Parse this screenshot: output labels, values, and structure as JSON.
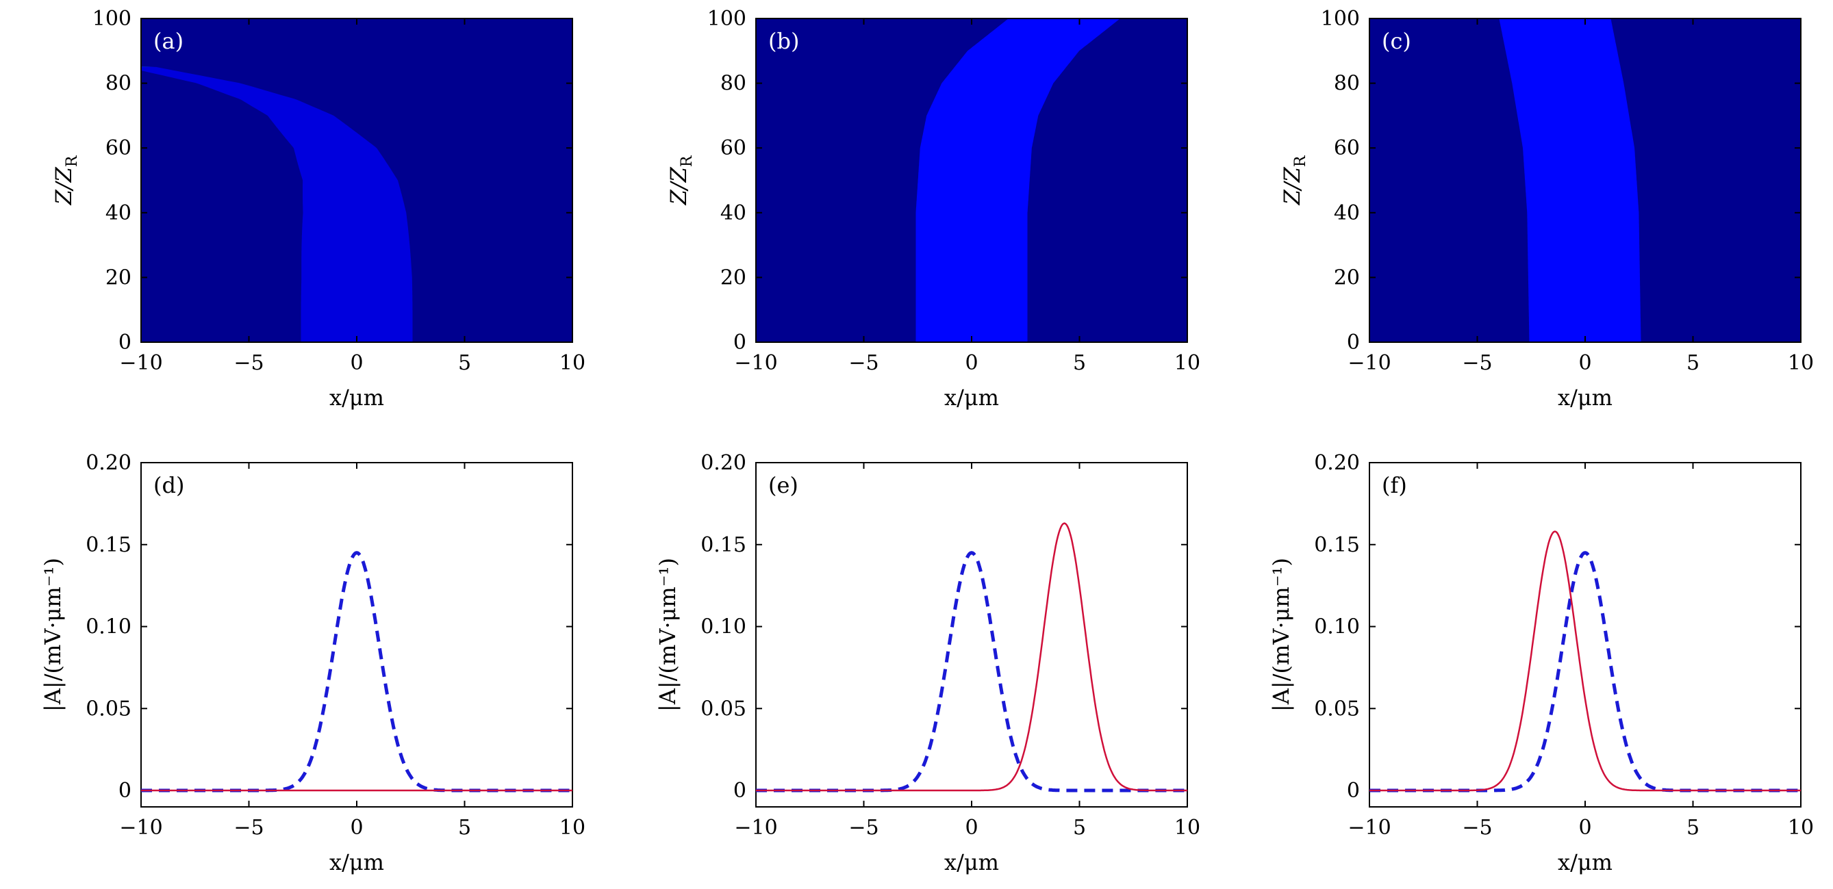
{
  "colors": {
    "dashed_series": "#1a1ad6",
    "solid_series": "#d0103a",
    "heatmap_background": "#00008f"
  },
  "chart_data": [
    {
      "panel": "(a)",
      "type": "heatmap",
      "colormap": "jet",
      "xlabel": "x/μm",
      "ylabel": "Z/Z_R",
      "xlim": [
        -10,
        10
      ],
      "ylim": [
        0,
        100
      ],
      "xticks": [
        "−10",
        "−5",
        "0",
        "5",
        "10"
      ],
      "yticks": [
        "0",
        "20",
        "40",
        "60",
        "80",
        "100"
      ],
      "beam": {
        "center_x_at_z": [
          [
            0,
            0.0
          ],
          [
            20,
            0.0
          ],
          [
            40,
            -0.1
          ],
          [
            50,
            -0.3
          ],
          [
            60,
            -1.0
          ],
          [
            70,
            -2.6
          ],
          [
            75,
            -4.1
          ],
          [
            80,
            -6.4
          ],
          [
            85,
            -10.0
          ]
        ],
        "width_um": [
          1.3,
          0.35
        ],
        "peak_intensity": 0.45,
        "end_z": 85
      }
    },
    {
      "panel": "(b)",
      "type": "heatmap",
      "colormap": "jet",
      "xlabel": "x/μm",
      "ylabel": "Z/Z_R",
      "xlim": [
        -10,
        10
      ],
      "ylim": [
        0,
        100
      ],
      "xticks": [
        "−10",
        "−5",
        "0",
        "5",
        "10"
      ],
      "yticks": [
        "0",
        "20",
        "40",
        "60",
        "80",
        "100"
      ],
      "beam": {
        "center_x_at_z": [
          [
            0,
            0.0
          ],
          [
            40,
            0.0
          ],
          [
            60,
            0.2
          ],
          [
            70,
            0.5
          ],
          [
            80,
            1.2
          ],
          [
            90,
            2.4
          ],
          [
            100,
            4.3
          ]
        ],
        "width_um": [
          1.3,
          1.3
        ],
        "peak_intensity": 1.0,
        "end_z": 100
      }
    },
    {
      "panel": "(c)",
      "type": "heatmap",
      "colormap": "jet",
      "xlabel": "x/μm",
      "ylabel": "Z/Z_R",
      "xlim": [
        -10,
        10
      ],
      "ylim": [
        0,
        100
      ],
      "xticks": [
        "−10",
        "−5",
        "0",
        "5",
        "10"
      ],
      "yticks": [
        "0",
        "20",
        "40",
        "60",
        "80",
        "100"
      ],
      "beam": {
        "center_x_at_z": [
          [
            0,
            0.0
          ],
          [
            40,
            -0.1
          ],
          [
            60,
            -0.3
          ],
          [
            80,
            -0.8
          ],
          [
            100,
            -1.4
          ]
        ],
        "width_um": [
          1.3,
          1.3
        ],
        "peak_intensity": 1.0,
        "end_z": 100
      }
    },
    {
      "panel": "(d)",
      "type": "line",
      "xlabel": "x/μm",
      "ylabel": "|A|/(mV·μm⁻¹)",
      "xlim": [
        -10,
        10
      ],
      "ylim": [
        -0.01,
        0.2
      ],
      "xticks": [
        "−10",
        "−5",
        "0",
        "5",
        "10"
      ],
      "yticks": [
        "0",
        "0.05",
        "0.10",
        "0.15",
        "0.20"
      ],
      "series": [
        {
          "style": "dashed",
          "color": "#1a1ad6",
          "x0": 0.0,
          "peak": 0.145,
          "sigma": 1.05
        },
        {
          "style": "solid",
          "color": "#d0103a",
          "x0": 0.0,
          "peak": 0.0,
          "sigma": 1.05
        }
      ]
    },
    {
      "panel": "(e)",
      "type": "line",
      "xlabel": "x/μm",
      "ylabel": "|A|/(mV·μm⁻¹)",
      "xlim": [
        -10,
        10
      ],
      "ylim": [
        -0.01,
        0.2
      ],
      "xticks": [
        "−10",
        "−5",
        "0",
        "5",
        "10"
      ],
      "yticks": [
        "0",
        "0.05",
        "0.10",
        "0.15",
        "0.20"
      ],
      "series": [
        {
          "style": "dashed",
          "color": "#1a1ad6",
          "x0": 0.0,
          "peak": 0.145,
          "sigma": 1.05
        },
        {
          "style": "solid",
          "color": "#d0103a",
          "x0": 4.3,
          "peak": 0.163,
          "sigma": 0.95
        }
      ]
    },
    {
      "panel": "(f)",
      "type": "line",
      "xlabel": "x/μm",
      "ylabel": "|A|/(mV·μm⁻¹)",
      "xlim": [
        -10,
        10
      ],
      "ylim": [
        -0.01,
        0.2
      ],
      "xticks": [
        "−10",
        "−5",
        "0",
        "5",
        "10"
      ],
      "yticks": [
        "0",
        "0.05",
        "0.10",
        "0.15",
        "0.20"
      ],
      "series": [
        {
          "style": "dashed",
          "color": "#1a1ad6",
          "x0": 0.0,
          "peak": 0.145,
          "sigma": 1.05
        },
        {
          "style": "solid",
          "color": "#d0103a",
          "x0": -1.4,
          "peak": 0.158,
          "sigma": 0.97
        }
      ]
    }
  ]
}
